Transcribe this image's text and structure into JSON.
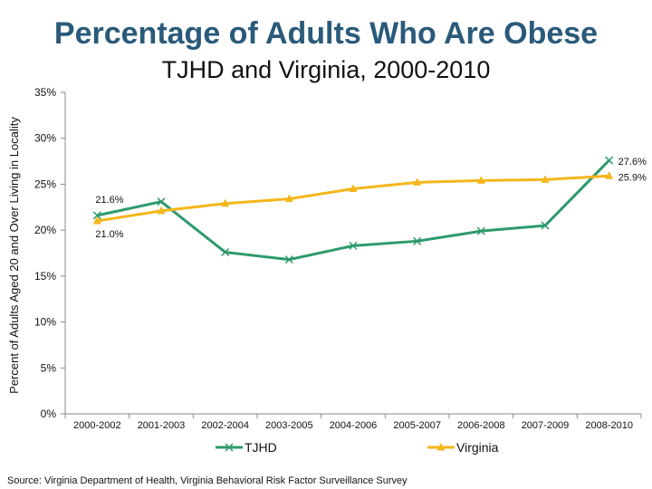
{
  "chart_data": {
    "type": "line",
    "title": "Percentage of Adults Who Are Obese",
    "subtitle": "TJHD and Virginia, 2000-2010",
    "ylabel": "Percent of Adults Aged 20 and Over Living in Locality",
    "xlabel": "",
    "categories": [
      "2000-2002",
      "2001-2003",
      "2002-2004",
      "2003-2005",
      "2004-2006",
      "2005-2007",
      "2006-2008",
      "2007-2009",
      "2008-2010"
    ],
    "ylim": [
      0,
      35
    ],
    "yticks": [
      "0%",
      "5%",
      "10%",
      "15%",
      "20%",
      "25%",
      "30%",
      "35%"
    ],
    "series": [
      {
        "name": "TJHD",
        "color": "#2e9a6c",
        "marker": "x",
        "values": [
          21.6,
          23.1,
          17.6,
          16.8,
          18.3,
          18.8,
          19.9,
          20.5,
          27.6
        ]
      },
      {
        "name": "Virginia",
        "color": "#f4b61a",
        "marker": "triangle",
        "values": [
          21.0,
          22.1,
          22.9,
          23.4,
          24.5,
          25.2,
          25.4,
          25.5,
          25.9
        ]
      }
    ],
    "data_labels": [
      {
        "series": 0,
        "index": 0,
        "text": "21.6%"
      },
      {
        "series": 1,
        "index": 0,
        "text": "21.0%"
      },
      {
        "series": 0,
        "index": 8,
        "text": "27.6%"
      },
      {
        "series": 1,
        "index": 8,
        "text": "25.9%"
      }
    ],
    "legend_position": "bottom",
    "grid": false
  },
  "source": "Source: Virginia Department of Health, Virginia Behavioral Risk Factor Surveillance Survey"
}
